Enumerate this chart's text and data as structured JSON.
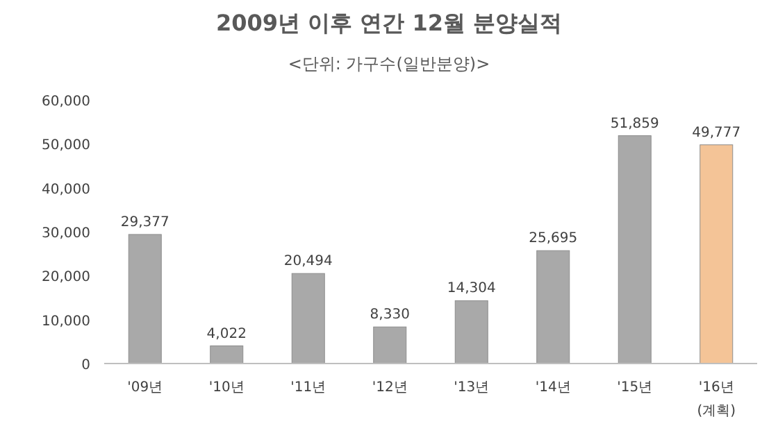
{
  "chart_data": {
    "type": "bar",
    "title": "2009년 이후 연간 12월 분양실적",
    "subtitle": "<단위: 가구수(일반분양)>",
    "categories": [
      "'09년",
      "'10년",
      "'11년",
      "'12년",
      "'13년",
      "'14년",
      "'15년",
      "'16년\n(계획)"
    ],
    "values": [
      29377,
      4022,
      20494,
      8330,
      14304,
      25695,
      51859,
      49777
    ],
    "value_labels": [
      "29,377",
      "4,022",
      "20,494",
      "8,330",
      "14,304",
      "25,695",
      "51,859",
      "49,777"
    ],
    "colors": [
      "#a9a9a9",
      "#a9a9a9",
      "#a9a9a9",
      "#a9a9a9",
      "#a9a9a9",
      "#a9a9a9",
      "#a9a9a9",
      "#f4c497"
    ],
    "ylim": [
      0,
      60000
    ],
    "yticks": [
      {
        "value": 0,
        "label": "0"
      },
      {
        "value": 10000,
        "label": "10,000"
      },
      {
        "value": 20000,
        "label": "20,000"
      },
      {
        "value": 30000,
        "label": "30,000"
      },
      {
        "value": 40000,
        "label": "40,000"
      },
      {
        "value": 50000,
        "label": "50,000"
      },
      {
        "value": 60000,
        "label": "60,000"
      }
    ],
    "grid": false
  }
}
